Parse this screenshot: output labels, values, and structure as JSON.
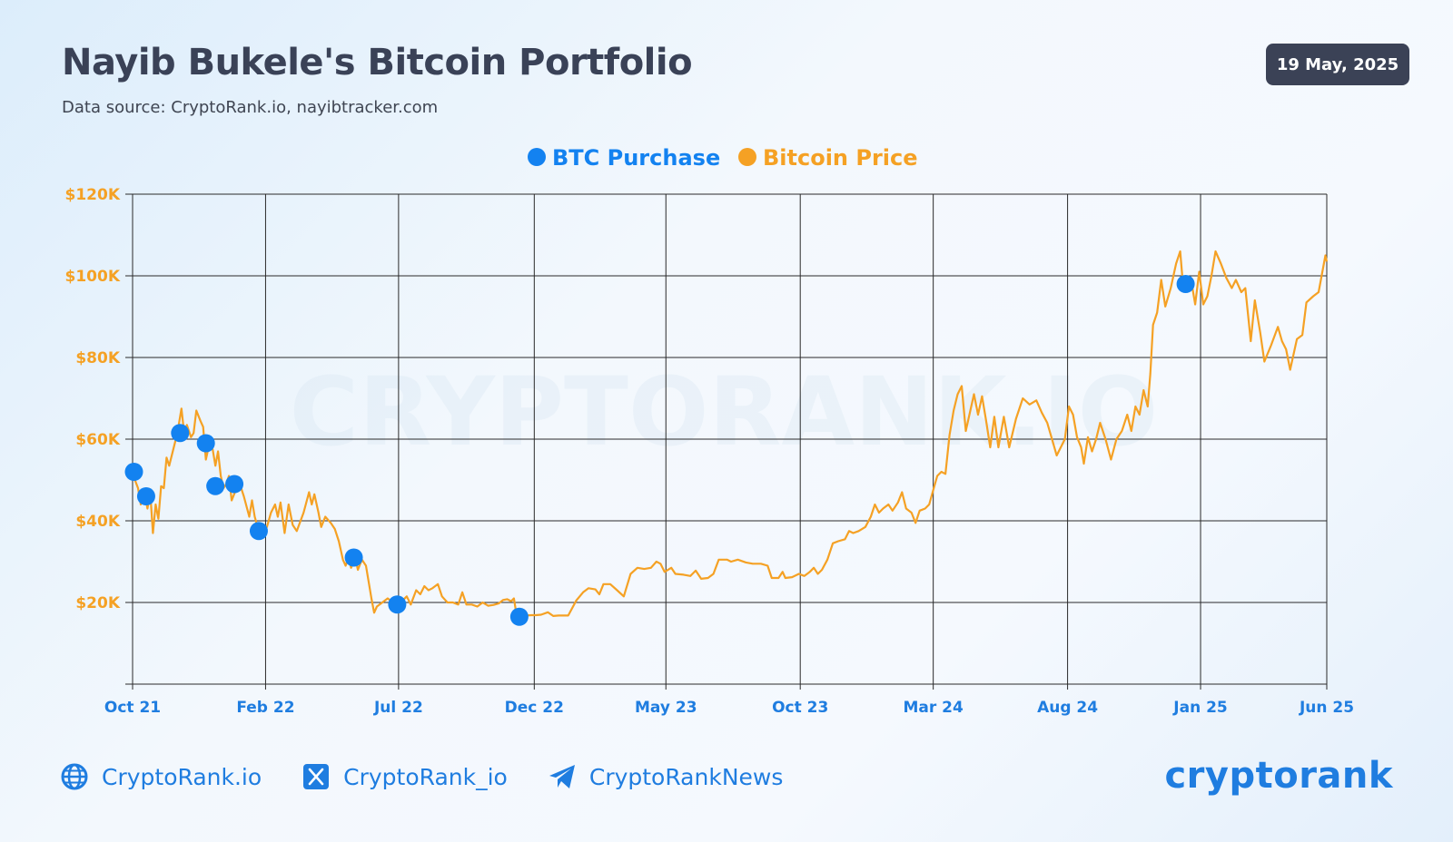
{
  "header": {
    "title": "Nayib Bukele's Bitcoin Portfolio",
    "subtitle": "Data source: CryptoRank.io, nayibtracker.com",
    "date": "19 May, 2025"
  },
  "watermark": "CRYPTORANK.IO",
  "footer": {
    "website": "CryptoRank.io",
    "twitter": "CryptoRank_io",
    "telegram": "CryptoRankNews",
    "brand": "cryptorank"
  },
  "colors": {
    "accent": "#1f7de0",
    "price": "#f5a124",
    "purchase": "#1382f0",
    "dark": "#3a4257"
  },
  "chart_data": {
    "type": "line",
    "title": "Nayib Bukele's Bitcoin Portfolio",
    "xlabel": "",
    "ylabel": "",
    "ylim": [
      0,
      120000
    ],
    "xlim": [
      0,
      44
    ],
    "y_ticks": [
      {
        "value": 20000,
        "label": "$20K"
      },
      {
        "value": 40000,
        "label": "$40K"
      },
      {
        "value": 60000,
        "label": "$60K"
      },
      {
        "value": 80000,
        "label": "$80K"
      },
      {
        "value": 100000,
        "label": "$100K"
      },
      {
        "value": 120000,
        "label": "$120K"
      }
    ],
    "x_ticks": [
      {
        "value": 0,
        "label": "Oct 21"
      },
      {
        "value": 4.9,
        "label": "Feb 22"
      },
      {
        "value": 9.8,
        "label": "Jul 22"
      },
      {
        "value": 14.8,
        "label": "Dec 22"
      },
      {
        "value": 19.65,
        "label": "May 23"
      },
      {
        "value": 24.6,
        "label": "Oct 23"
      },
      {
        "value": 29.5,
        "label": "Mar 24"
      },
      {
        "value": 34.45,
        "label": "Aug 24"
      },
      {
        "value": 39.35,
        "label": "Jan 25"
      },
      {
        "value": 44,
        "label": "Jun 25"
      }
    ],
    "legend": [
      {
        "name": "BTC Purchase",
        "color": "#1382f0"
      },
      {
        "name": "Bitcoin Price",
        "color": "#f5a124"
      }
    ],
    "legend_position": "top-center",
    "grid": true,
    "series": [
      {
        "name": "Bitcoin Price",
        "points": [
          [
            0.0,
            51500
          ],
          [
            0.2,
            48000
          ],
          [
            0.3,
            44000
          ],
          [
            0.45,
            46500
          ],
          [
            0.55,
            43000
          ],
          [
            0.65,
            47000
          ],
          [
            0.75,
            37000
          ],
          [
            0.85,
            44000
          ],
          [
            0.95,
            40500
          ],
          [
            1.05,
            48500
          ],
          [
            1.15,
            48000
          ],
          [
            1.25,
            55500
          ],
          [
            1.35,
            53500
          ],
          [
            1.5,
            57500
          ],
          [
            1.65,
            61500
          ],
          [
            1.8,
            67500
          ],
          [
            1.9,
            61500
          ],
          [
            2.0,
            63500
          ],
          [
            2.15,
            60500
          ],
          [
            2.25,
            61500
          ],
          [
            2.35,
            67000
          ],
          [
            2.5,
            64500
          ],
          [
            2.6,
            63000
          ],
          [
            2.7,
            55000
          ],
          [
            2.8,
            58000
          ],
          [
            2.95,
            57500
          ],
          [
            3.05,
            53500
          ],
          [
            3.15,
            57000
          ],
          [
            3.25,
            51000
          ],
          [
            3.35,
            48000
          ],
          [
            3.45,
            49000
          ],
          [
            3.55,
            51000
          ],
          [
            3.65,
            45000
          ],
          [
            3.8,
            47500
          ],
          [
            3.95,
            49000
          ],
          [
            4.1,
            46000
          ],
          [
            4.3,
            41000
          ],
          [
            4.4,
            45000
          ],
          [
            4.5,
            41000
          ],
          [
            4.65,
            37500
          ],
          [
            4.8,
            37000
          ],
          [
            4.95,
            38500
          ],
          [
            5.1,
            42000
          ],
          [
            5.25,
            44000
          ],
          [
            5.35,
            41000
          ],
          [
            5.45,
            44500
          ],
          [
            5.6,
            37000
          ],
          [
            5.75,
            44000
          ],
          [
            5.9,
            39000
          ],
          [
            6.05,
            37500
          ],
          [
            6.3,
            42000
          ],
          [
            6.5,
            47000
          ],
          [
            6.6,
            44000
          ],
          [
            6.7,
            46500
          ],
          [
            6.85,
            42000
          ],
          [
            6.95,
            38500
          ],
          [
            7.1,
            41000
          ],
          [
            7.3,
            39500
          ],
          [
            7.45,
            38000
          ],
          [
            7.6,
            35000
          ],
          [
            7.75,
            30500
          ],
          [
            7.85,
            29000
          ],
          [
            7.95,
            31000
          ],
          [
            8.05,
            28500
          ],
          [
            8.2,
            31000
          ],
          [
            8.3,
            28000
          ],
          [
            8.45,
            30500
          ],
          [
            8.6,
            29000
          ],
          [
            8.7,
            25000
          ],
          [
            8.8,
            21000
          ],
          [
            8.9,
            17500
          ],
          [
            9.0,
            19000
          ],
          [
            9.2,
            20000
          ],
          [
            9.4,
            21000
          ],
          [
            9.6,
            20000
          ],
          [
            9.8,
            19000
          ],
          [
            9.95,
            20500
          ],
          [
            10.1,
            21500
          ],
          [
            10.25,
            19500
          ],
          [
            10.45,
            23000
          ],
          [
            10.6,
            22000
          ],
          [
            10.75,
            24000
          ],
          [
            10.9,
            23000
          ],
          [
            11.05,
            23500
          ],
          [
            11.25,
            24500
          ],
          [
            11.4,
            21500
          ],
          [
            11.6,
            20000
          ],
          [
            11.8,
            20000
          ],
          [
            12.0,
            19500
          ],
          [
            12.15,
            22500
          ],
          [
            12.3,
            19500
          ],
          [
            12.5,
            19500
          ],
          [
            12.7,
            19000
          ],
          [
            12.9,
            20000
          ],
          [
            13.1,
            19200
          ],
          [
            13.3,
            19400
          ],
          [
            13.5,
            19800
          ],
          [
            13.65,
            20600
          ],
          [
            13.8,
            20800
          ],
          [
            13.95,
            20300
          ],
          [
            14.05,
            21000
          ],
          [
            14.15,
            16800
          ],
          [
            14.3,
            16600
          ],
          [
            14.5,
            16800
          ],
          [
            14.7,
            16900
          ],
          [
            14.85,
            16900
          ],
          [
            15.05,
            17000
          ],
          [
            15.3,
            17600
          ],
          [
            15.5,
            16700
          ],
          [
            15.7,
            16800
          ],
          [
            16.05,
            16800
          ],
          [
            16.35,
            20500
          ],
          [
            16.6,
            22500
          ],
          [
            16.8,
            23500
          ],
          [
            17.05,
            23200
          ],
          [
            17.2,
            22000
          ],
          [
            17.35,
            24500
          ],
          [
            17.6,
            24500
          ],
          [
            17.85,
            23000
          ],
          [
            18.1,
            21500
          ],
          [
            18.35,
            27000
          ],
          [
            18.6,
            28500
          ],
          [
            18.85,
            28200
          ],
          [
            19.1,
            28500
          ],
          [
            19.3,
            30000
          ],
          [
            19.45,
            29500
          ],
          [
            19.6,
            27500
          ],
          [
            19.85,
            28500
          ],
          [
            20.0,
            27000
          ],
          [
            20.3,
            26800
          ],
          [
            20.55,
            26500
          ],
          [
            20.75,
            27800
          ],
          [
            20.95,
            25800
          ],
          [
            21.2,
            26000
          ],
          [
            21.4,
            27000
          ],
          [
            21.6,
            30500
          ],
          [
            21.9,
            30500
          ],
          [
            22.05,
            30000
          ],
          [
            22.3,
            30500
          ],
          [
            22.6,
            29800
          ],
          [
            22.85,
            29500
          ],
          [
            23.15,
            29500
          ],
          [
            23.4,
            29000
          ],
          [
            23.55,
            26000
          ],
          [
            23.8,
            26000
          ],
          [
            23.95,
            27500
          ],
          [
            24.05,
            26000
          ],
          [
            24.3,
            26200
          ],
          [
            24.55,
            27000
          ],
          [
            24.75,
            26500
          ],
          [
            24.95,
            27500
          ],
          [
            25.1,
            28500
          ],
          [
            25.25,
            27000
          ],
          [
            25.4,
            28000
          ],
          [
            25.6,
            30500
          ],
          [
            25.8,
            34500
          ],
          [
            26.0,
            35000
          ],
          [
            26.25,
            35500
          ],
          [
            26.4,
            37500
          ],
          [
            26.55,
            37000
          ],
          [
            26.75,
            37500
          ],
          [
            27.0,
            38500
          ],
          [
            27.2,
            41000
          ],
          [
            27.35,
            44000
          ],
          [
            27.5,
            42000
          ],
          [
            27.65,
            43000
          ],
          [
            27.85,
            44000
          ],
          [
            28.0,
            42500
          ],
          [
            28.2,
            44500
          ],
          [
            28.35,
            47000
          ],
          [
            28.5,
            43000
          ],
          [
            28.7,
            42000
          ],
          [
            28.85,
            39500
          ],
          [
            29.0,
            42500
          ],
          [
            29.2,
            43000
          ],
          [
            29.35,
            44000
          ],
          [
            29.5,
            47500
          ],
          [
            29.65,
            51000
          ],
          [
            29.8,
            52000
          ],
          [
            29.95,
            51500
          ],
          [
            30.1,
            61000
          ],
          [
            30.25,
            67000
          ],
          [
            30.4,
            71000
          ],
          [
            30.55,
            73000
          ],
          [
            30.7,
            62000
          ],
          [
            30.85,
            66500
          ],
          [
            31.0,
            71000
          ],
          [
            31.15,
            66000
          ],
          [
            31.3,
            70500
          ],
          [
            31.45,
            64500
          ],
          [
            31.6,
            58000
          ],
          [
            31.75,
            65500
          ],
          [
            31.9,
            58000
          ],
          [
            32.1,
            65500
          ],
          [
            32.3,
            58000
          ],
          [
            32.55,
            65000
          ],
          [
            32.8,
            70000
          ],
          [
            33.05,
            68500
          ],
          [
            33.3,
            69500
          ],
          [
            33.5,
            66500
          ],
          [
            33.7,
            64000
          ],
          [
            33.9,
            59500
          ],
          [
            34.05,
            56000
          ],
          [
            34.2,
            58000
          ],
          [
            34.35,
            60000
          ],
          [
            34.5,
            68000
          ],
          [
            34.65,
            66000
          ],
          [
            34.8,
            60500
          ],
          [
            34.95,
            58000
          ],
          [
            35.05,
            54000
          ],
          [
            35.2,
            60500
          ],
          [
            35.35,
            57000
          ],
          [
            35.5,
            60000
          ],
          [
            35.65,
            64000
          ],
          [
            35.85,
            60000
          ],
          [
            36.05,
            55000
          ],
          [
            36.25,
            60000
          ],
          [
            36.45,
            62000
          ],
          [
            36.65,
            66000
          ],
          [
            36.8,
            62000
          ],
          [
            36.95,
            68000
          ],
          [
            37.1,
            66000
          ],
          [
            37.25,
            72000
          ],
          [
            37.4,
            68000
          ],
          [
            37.5,
            76000
          ],
          [
            37.6,
            88000
          ],
          [
            37.75,
            91000
          ],
          [
            37.9,
            99000
          ],
          [
            38.05,
            92500
          ],
          [
            38.25,
            97000
          ],
          [
            38.45,
            103000
          ],
          [
            38.6,
            106000
          ],
          [
            38.7,
            98000
          ],
          [
            38.85,
            98000
          ],
          [
            39.0,
            99000
          ],
          [
            39.15,
            93000
          ],
          [
            39.3,
            101000
          ],
          [
            39.45,
            93000
          ],
          [
            39.6,
            95000
          ],
          [
            39.75,
            100000
          ],
          [
            39.9,
            106000
          ],
          [
            40.1,
            103000
          ],
          [
            40.3,
            99500
          ],
          [
            40.5,
            97000
          ],
          [
            40.65,
            99000
          ],
          [
            40.85,
            96000
          ],
          [
            41.0,
            97000
          ],
          [
            41.2,
            84000
          ],
          [
            41.35,
            94000
          ],
          [
            41.55,
            86000
          ],
          [
            41.7,
            79000
          ],
          [
            41.95,
            83000
          ],
          [
            42.2,
            87500
          ],
          [
            42.35,
            84000
          ],
          [
            42.5,
            82000
          ],
          [
            42.65,
            77000
          ],
          [
            42.9,
            84500
          ],
          [
            43.1,
            85500
          ],
          [
            43.25,
            93500
          ],
          [
            43.5,
            95000
          ],
          [
            43.7,
            96000
          ],
          [
            43.95,
            105000
          ],
          [
            44.0,
            103500
          ]
        ]
      },
      {
        "name": "BTC Purchase",
        "points": [
          [
            0.05,
            52000
          ],
          [
            0.5,
            46000
          ],
          [
            1.75,
            61500
          ],
          [
            2.7,
            59000
          ],
          [
            3.05,
            48500
          ],
          [
            3.75,
            49000
          ],
          [
            4.65,
            37500
          ],
          [
            8.15,
            31000
          ],
          [
            9.75,
            19500
          ],
          [
            14.25,
            16500
          ],
          [
            38.8,
            98000
          ]
        ]
      }
    ]
  }
}
